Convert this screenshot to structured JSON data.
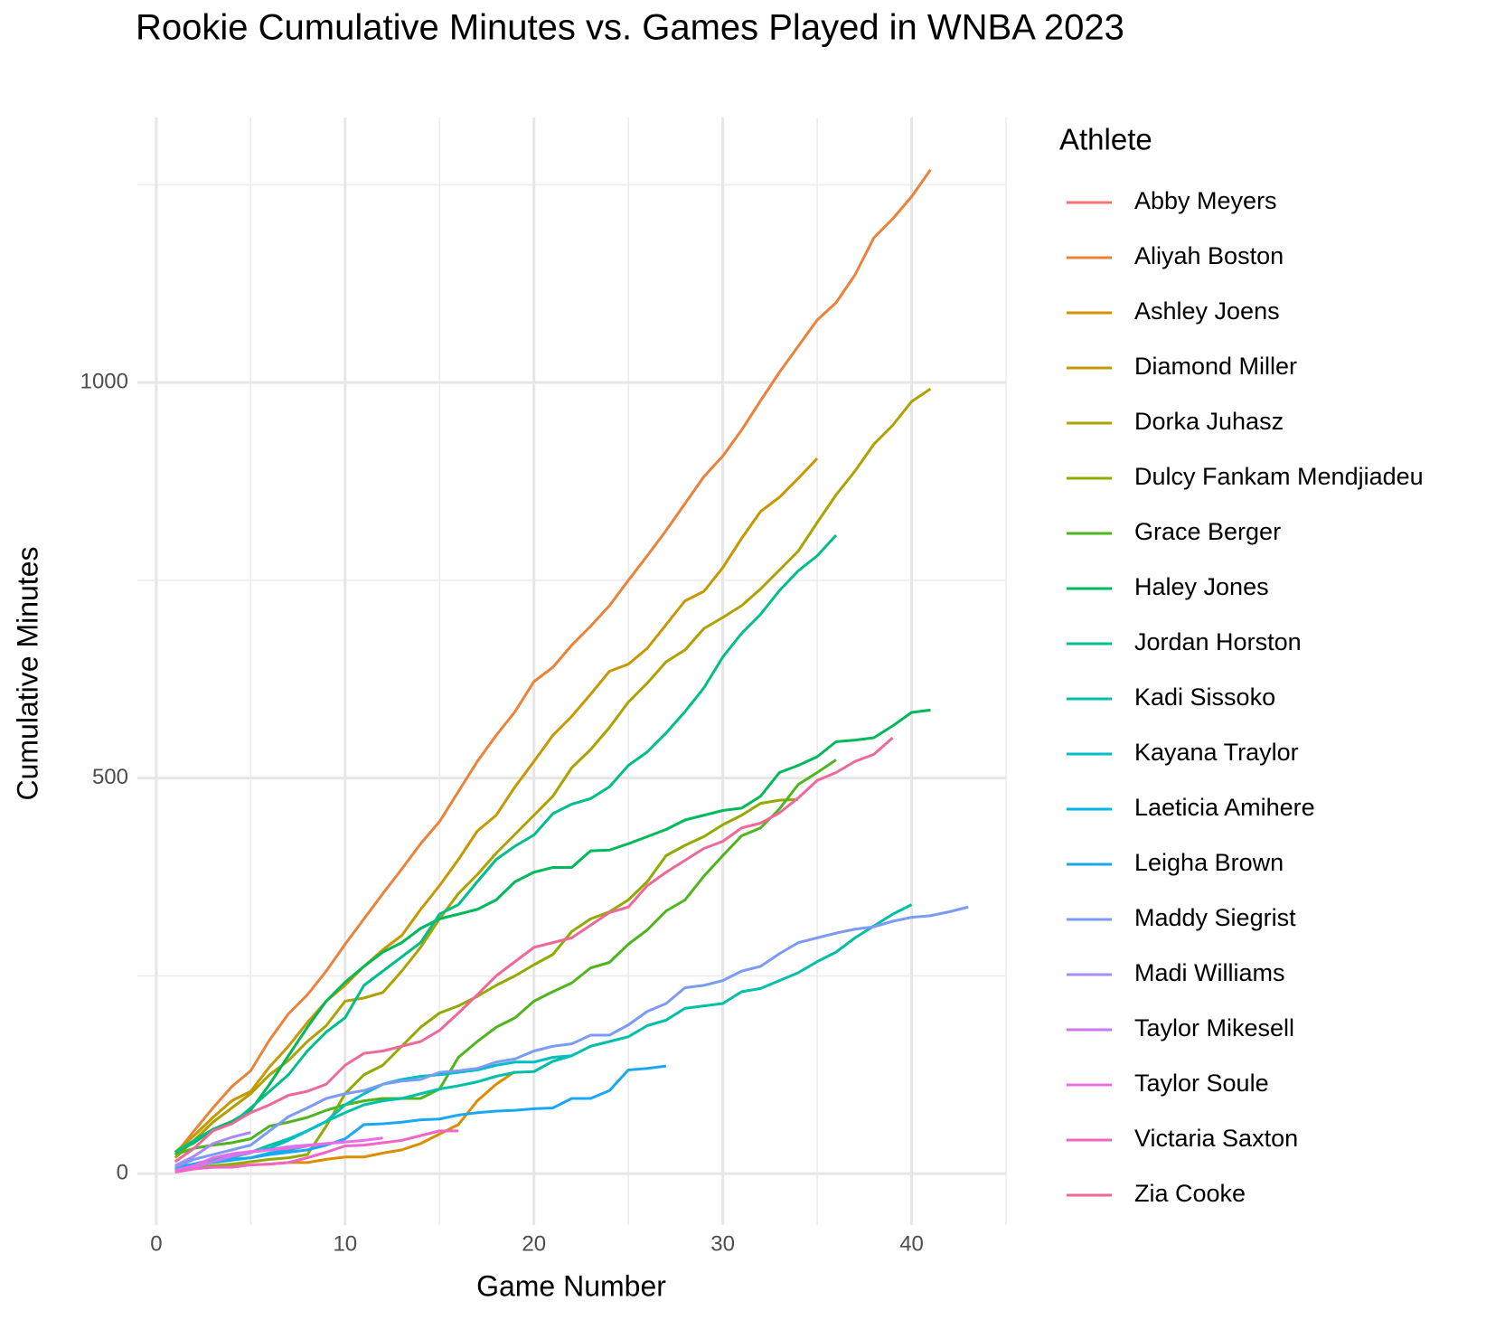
{
  "chart_data": {
    "type": "line",
    "title": "Rookie Cumulative Minutes vs. Games Played in WNBA 2023",
    "x_label": "Game Number",
    "y_label": "Cumulative Minutes",
    "legend_title": "Athlete",
    "xlim": [
      -1,
      45
    ],
    "ylim": [
      -65,
      1335
    ],
    "xticks": [
      0,
      10,
      20,
      30,
      40
    ],
    "yticks": [
      0,
      500,
      1000
    ],
    "x_minor_grid": [
      5,
      15,
      25,
      35,
      45
    ],
    "y_minor_grid": [
      250,
      750,
      1250
    ],
    "grid": true,
    "legend": "right",
    "x": [
      1,
      2,
      3,
      4,
      5,
      6,
      7,
      8,
      9,
      10,
      11,
      12,
      13,
      14,
      15,
      16,
      17,
      18,
      19,
      20,
      21,
      22,
      23,
      24,
      25,
      26,
      27,
      28,
      29,
      30,
      31,
      32,
      33,
      34,
      35,
      36,
      37,
      38,
      39,
      40,
      41,
      42,
      43
    ],
    "series": [
      {
        "name": "Abby Meyers",
        "color": "#F8766D",
        "values": [
          5,
          12,
          18,
          22,
          26,
          null,
          null,
          null,
          null,
          null,
          null,
          null,
          null,
          null,
          null,
          null,
          null,
          null,
          null,
          null,
          null,
          null,
          null,
          null,
          null,
          null,
          null,
          null,
          null,
          null,
          null,
          null,
          null,
          null,
          null,
          null,
          null,
          null,
          null,
          null,
          null,
          null,
          null
        ]
      },
      {
        "name": "Aliyah Boston",
        "color": "#EC8239",
        "values": [
          24,
          54,
          83,
          110,
          130,
          169,
          202,
          226,
          256,
          290,
          322,
          354,
          385,
          417,
          445,
          483,
          521,
          554,
          584,
          622,
          640,
          668,
          692,
          718,
          750,
          781,
          813,
          847,
          881,
          907,
          940,
          977,
          1013,
          1046,
          1079,
          1101,
          1136,
          1183,
          1207,
          1235,
          1269,
          null,
          null
        ]
      },
      {
        "name": "Ashley Joens",
        "color": "#DB8E00",
        "values": [
          2,
          6,
          8,
          10,
          11,
          12,
          14,
          14,
          18,
          21,
          21,
          26,
          30,
          38,
          50,
          62,
          92,
          113,
          129,
          null,
          null,
          null,
          null,
          null,
          null,
          null,
          null,
          null,
          null,
          null,
          null,
          null,
          null,
          null,
          null,
          null,
          null,
          null,
          null,
          null,
          null,
          null,
          null
        ]
      },
      {
        "name": "Diamond Miller",
        "color": "#C79800",
        "values": [
          27,
          48,
          71,
          92,
          104,
          135,
          161,
          191,
          218,
          238,
          262,
          283,
          301,
          334,
          364,
          397,
          433,
          453,
          489,
          521,
          554,
          578,
          606,
          635,
          644,
          664,
          694,
          724,
          736,
          766,
          803,
          837,
          855,
          879,
          904,
          null,
          null,
          null,
          null,
          null,
          null,
          null,
          null
        ]
      },
      {
        "name": "Dorka Juhasz",
        "color": "#AFA100",
        "values": [
          20,
          42,
          65,
          83,
          101,
          125,
          143,
          167,
          187,
          218,
          222,
          229,
          256,
          286,
          322,
          354,
          378,
          405,
          429,
          453,
          477,
          513,
          536,
          564,
          596,
          620,
          647,
          662,
          689,
          703,
          718,
          739,
          763,
          787,
          823,
          858,
          888,
          922,
          946,
          976,
          992,
          null,
          null
        ]
      },
      {
        "name": "Dulcy Fankam Mendjiadeu",
        "color": "#93AA00",
        "values": [
          6,
          8,
          10,
          12,
          15,
          18,
          20,
          24,
          60,
          101,
          125,
          137,
          161,
          185,
          203,
          212,
          224,
          238,
          250,
          264,
          277,
          306,
          322,
          331,
          346,
          369,
          402,
          415,
          426,
          441,
          453,
          468,
          472,
          473,
          null,
          null,
          null,
          null,
          null,
          null,
          null,
          null,
          null
        ]
      },
      {
        "name": "Grace Berger",
        "color": "#4FB51F",
        "values": [
          24,
          32,
          36,
          39,
          44,
          60,
          65,
          71,
          80,
          87,
          92,
          95,
          95,
          95,
          107,
          147,
          167,
          185,
          197,
          218,
          230,
          241,
          260,
          267,
          290,
          308,
          332,
          346,
          376,
          402,
          427,
          437,
          461,
          492,
          507,
          523,
          null,
          null,
          null,
          null,
          null,
          null,
          null
        ]
      },
      {
        "name": "Haley Jones",
        "color": "#00BA5A",
        "values": [
          27,
          39,
          56,
          66,
          80,
          113,
          149,
          185,
          218,
          242,
          262,
          280,
          292,
          310,
          322,
          328,
          334,
          346,
          369,
          381,
          387,
          387,
          408,
          409,
          417,
          426,
          435,
          447,
          453,
          459,
          462,
          477,
          507,
          516,
          527,
          546,
          548,
          551,
          566,
          583,
          586,
          null,
          null
        ]
      },
      {
        "name": "Jordan Horston",
        "color": "#00BF8A",
        "values": [
          27,
          42,
          56,
          63,
          83,
          104,
          125,
          155,
          179,
          197,
          238,
          256,
          274,
          292,
          328,
          340,
          369,
          397,
          414,
          428,
          455,
          467,
          474,
          489,
          516,
          533,
          557,
          584,
          614,
          653,
          683,
          707,
          737,
          762,
          781,
          807,
          null,
          null,
          null,
          null,
          null,
          null,
          null
        ]
      },
      {
        "name": "Kadi Sissoko",
        "color": "#00C1A7",
        "values": [
          6,
          12,
          15,
          20,
          27,
          36,
          44,
          54,
          66,
          77,
          87,
          92,
          95,
          101,
          107,
          111,
          116,
          123,
          128,
          129,
          142,
          149,
          161,
          167,
          173,
          187,
          194,
          209,
          212,
          215,
          230,
          234,
          244,
          254,
          268,
          280,
          298,
          313,
          328,
          340,
          null,
          null,
          null
        ]
      },
      {
        "name": "Kayana Traylor",
        "color": "#00BEC4",
        "values": [
          6,
          12,
          18,
          24,
          27,
          32,
          42,
          54,
          66,
          87,
          101,
          113,
          119,
          123,
          125,
          128,
          131,
          137,
          141,
          141,
          147,
          149,
          null,
          null,
          null,
          null,
          null,
          null,
          null,
          null,
          null,
          null,
          null,
          null,
          null,
          null,
          null,
          null,
          null,
          null,
          null,
          null,
          null
        ]
      },
      {
        "name": "Laeticia Amihere",
        "color": "#00B6E2",
        "values": [
          5,
          10,
          14,
          17,
          20,
          26,
          30,
          35,
          null,
          null,
          null,
          null,
          null,
          null,
          null,
          null,
          null,
          null,
          null,
          null,
          null,
          null,
          null,
          null,
          null,
          null,
          null,
          null,
          null,
          null,
          null,
          null,
          null,
          null,
          null,
          null,
          null,
          null,
          null,
          null,
          null,
          null,
          null
        ]
      },
      {
        "name": "Leigha Brown",
        "color": "#1AA8F5",
        "values": [
          8,
          12,
          15,
          18,
          20,
          24,
          27,
          30,
          36,
          44,
          62,
          63,
          65,
          68,
          69,
          74,
          77,
          79,
          80,
          82,
          83,
          95,
          95,
          105,
          131,
          133,
          136,
          null,
          null,
          null,
          null,
          null,
          null,
          null,
          null,
          null,
          null,
          null,
          null,
          null,
          null,
          null,
          null
        ]
      },
      {
        "name": "Maddy Siegrist",
        "color": "#7B9BF5",
        "values": [
          8,
          18,
          24,
          30,
          36,
          54,
          72,
          83,
          95,
          101,
          105,
          113,
          117,
          119,
          128,
          130,
          133,
          141,
          145,
          155,
          161,
          164,
          175,
          175,
          188,
          205,
          215,
          235,
          238,
          244,
          256,
          262,
          278,
          292,
          298,
          304,
          309,
          312,
          319,
          324,
          326,
          331,
          337
        ]
      },
      {
        "name": "Madi Williams",
        "color": "#A78CF7",
        "values": [
          10,
          22,
          38,
          46,
          52,
          null,
          null,
          null,
          null,
          null,
          null,
          null,
          null,
          null,
          null,
          null,
          null,
          null,
          null,
          null,
          null,
          null,
          null,
          null,
          null,
          null,
          null,
          null,
          null,
          null,
          null,
          null,
          null,
          null,
          null,
          null,
          null,
          null,
          null,
          null,
          null,
          null,
          null
        ]
      },
      {
        "name": "Taylor Mikesell",
        "color": "#CC79F2",
        "values": [
          3,
          8,
          15,
          22,
          27,
          30,
          34,
          36,
          38,
          40,
          null,
          null,
          null,
          null,
          null,
          null,
          null,
          null,
          null,
          null,
          null,
          null,
          null,
          null,
          null,
          null,
          null,
          null,
          null,
          null,
          null,
          null,
          null,
          null,
          null,
          null,
          null,
          null,
          null,
          null,
          null,
          null,
          null
        ]
      },
      {
        "name": "Taylor Soule",
        "color": "#EC6CE6",
        "values": [
          4,
          10,
          20,
          25,
          28,
          30,
          32,
          35,
          38,
          40,
          42,
          45,
          null,
          null,
          null,
          null,
          null,
          null,
          null,
          null,
          null,
          null,
          null,
          null,
          null,
          null,
          null,
          null,
          null,
          null,
          null,
          null,
          null,
          null,
          null,
          null,
          null,
          null,
          null,
          null,
          null,
          null,
          null
        ]
      },
      {
        "name": "Victaria Saxton",
        "color": "#F066C6",
        "values": [
          2,
          6,
          8,
          8,
          11,
          12,
          14,
          20,
          27,
          35,
          36,
          39,
          42,
          48,
          54,
          54,
          null,
          null,
          null,
          null,
          null,
          null,
          null,
          null,
          null,
          null,
          null,
          null,
          null,
          null,
          null,
          null,
          null,
          null,
          null,
          null,
          null,
          null,
          null,
          null,
          null,
          null,
          null
        ]
      },
      {
        "name": "Zia Cooke",
        "color": "#F0689A",
        "values": [
          15,
          32,
          54,
          63,
          77,
          87,
          99,
          104,
          113,
          137,
          152,
          155,
          161,
          167,
          181,
          203,
          226,
          250,
          268,
          286,
          292,
          298,
          314,
          330,
          337,
          364,
          381,
          396,
          411,
          420,
          437,
          443,
          456,
          475,
          497,
          507,
          521,
          530,
          551,
          null,
          null,
          null,
          null
        ]
      }
    ]
  }
}
